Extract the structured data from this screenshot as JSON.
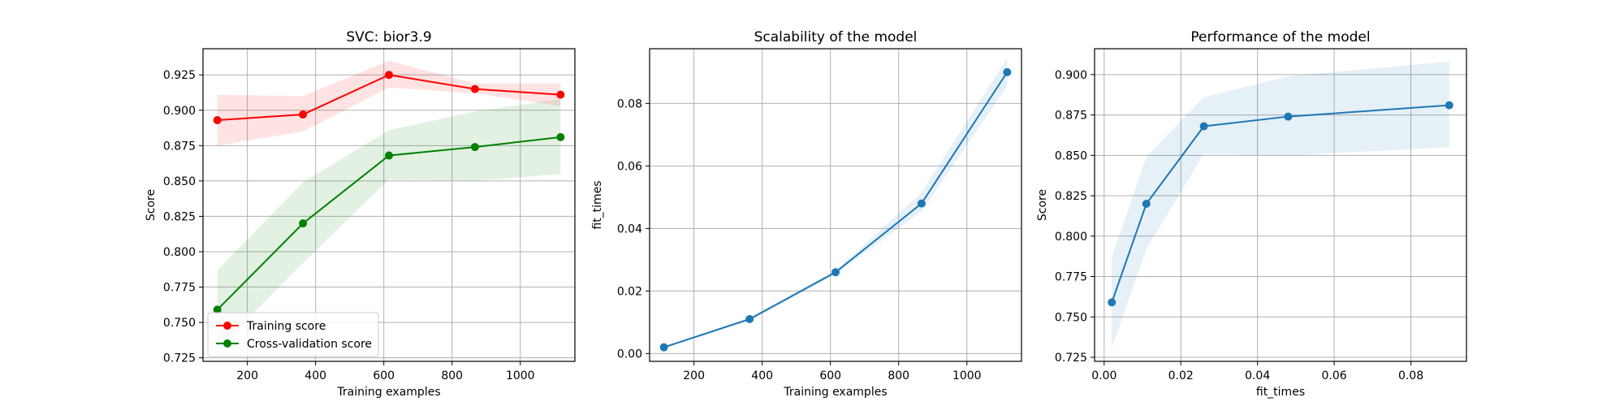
{
  "chart_data": [
    {
      "type": "line",
      "title": "SVC: bior3.9",
      "xlabel": "Training examples",
      "ylabel": "Score",
      "xlim": [
        70,
        1160
      ],
      "ylim": [
        0.7225,
        0.9435
      ],
      "xticks": [
        200,
        400,
        600,
        800,
        1000
      ],
      "xtick_labels": [
        "200",
        "400",
        "600",
        "800",
        "1000"
      ],
      "yticks": [
        0.725,
        0.75,
        0.775,
        0.8,
        0.825,
        0.85,
        0.875,
        0.9,
        0.925
      ],
      "ytick_labels": [
        "0.725",
        "0.750",
        "0.775",
        "0.800",
        "0.825",
        "0.850",
        "0.875",
        "0.900",
        "0.925"
      ],
      "grid": true,
      "legend": "lower-left",
      "x": [
        112,
        363,
        615,
        867,
        1118
      ],
      "series": [
        {
          "name": "Training score",
          "color": "#ff0000",
          "values": [
            0.893,
            0.897,
            0.925,
            0.915,
            0.911
          ],
          "lower": [
            0.875,
            0.885,
            0.916,
            0.912,
            0.903
          ],
          "upper": [
            0.911,
            0.91,
            0.935,
            0.919,
            0.919
          ]
        },
        {
          "name": "Cross-validation score",
          "color": "#008000",
          "values": [
            0.759,
            0.82,
            0.868,
            0.874,
            0.881
          ],
          "lower": [
            0.731,
            0.792,
            0.851,
            0.85,
            0.855
          ],
          "upper": [
            0.787,
            0.849,
            0.886,
            0.899,
            0.908
          ]
        }
      ]
    },
    {
      "type": "line",
      "title": "Scalability of the model",
      "xlabel": "Training examples",
      "ylabel": "fit_times",
      "xlim": [
        70,
        1160
      ],
      "ylim": [
        -0.0025,
        0.0975
      ],
      "xticks": [
        200,
        400,
        600,
        800,
        1000
      ],
      "xtick_labels": [
        "200",
        "400",
        "600",
        "800",
        "1000"
      ],
      "yticks": [
        0,
        0.02,
        0.04,
        0.06,
        0.08
      ],
      "ytick_labels": [
        "0.00",
        "0.02",
        "0.04",
        "0.06",
        "0.08"
      ],
      "grid": true,
      "x": [
        112,
        363,
        615,
        867,
        1118
      ],
      "series": [
        {
          "name": "fit_times",
          "color": "#1f77b4",
          "values": [
            0.002,
            0.011,
            0.026,
            0.048,
            0.09
          ],
          "lower": [
            0.0018,
            0.0105,
            0.0253,
            0.0455,
            0.0855
          ],
          "upper": [
            0.0023,
            0.0115,
            0.0265,
            0.0515,
            0.0945
          ]
        }
      ]
    },
    {
      "type": "line",
      "title": "Performance of the model",
      "xlabel": "fit_times",
      "ylabel": "Score",
      "xlim": [
        -0.0025,
        0.0945
      ],
      "ylim": [
        0.7225,
        0.916
      ],
      "xticks": [
        0,
        0.02,
        0.04,
        0.06,
        0.08
      ],
      "xtick_labels": [
        "0.00",
        "0.02",
        "0.04",
        "0.06",
        "0.08"
      ],
      "yticks": [
        0.725,
        0.75,
        0.775,
        0.8,
        0.825,
        0.85,
        0.875,
        0.9
      ],
      "ytick_labels": [
        "0.725",
        "0.750",
        "0.775",
        "0.800",
        "0.825",
        "0.850",
        "0.875",
        "0.900"
      ],
      "grid": true,
      "x": [
        0.002,
        0.011,
        0.026,
        0.048,
        0.09
      ],
      "series": [
        {
          "name": "Score",
          "color": "#1f77b4",
          "values": [
            0.759,
            0.82,
            0.868,
            0.874,
            0.881
          ],
          "lower": [
            0.731,
            0.792,
            0.851,
            0.85,
            0.855
          ],
          "upper": [
            0.787,
            0.849,
            0.886,
            0.899,
            0.908
          ]
        }
      ]
    }
  ]
}
